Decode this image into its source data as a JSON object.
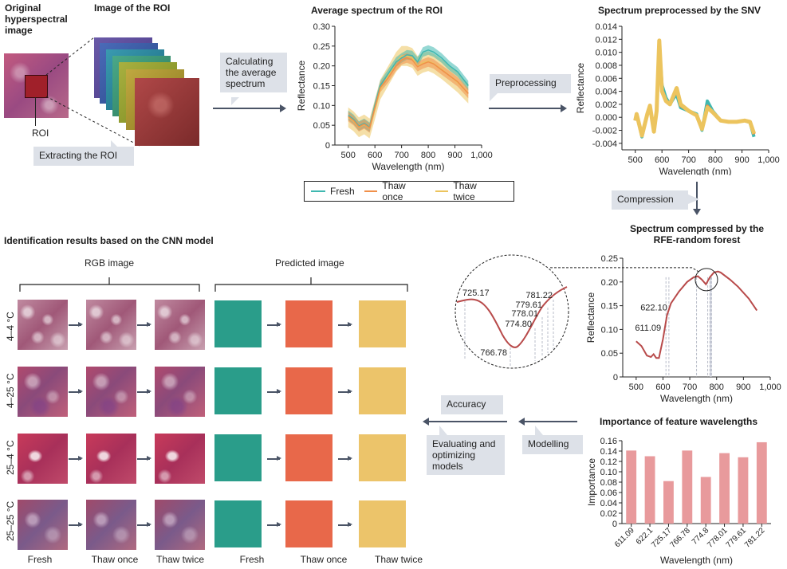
{
  "colors": {
    "fresh": "#3fb8b0",
    "thaw_once": "#f0904a",
    "thaw_twice": "#ecc45e",
    "compressed_line": "#b84a4a",
    "bar": "#e89a9c",
    "pred_fresh": "#2a9d8a",
    "pred_once": "#e8684a",
    "pred_twice": "#ecc46a",
    "callout_bg": "#dde1e8",
    "arrow": "#4a5466"
  },
  "top": {
    "original_title": "Original hyperspectral image",
    "roi_image_title": "Image of the ROI",
    "roi_label": "ROI",
    "extract_callout": "Extracting the ROI",
    "avg_callout": "Calculating the average spectrum",
    "preprocess_callout": "Preprocessing",
    "compression_callout": "Compression"
  },
  "legend": {
    "items": [
      "Fresh",
      "Thaw once",
      "Thaw twice"
    ]
  },
  "cnn": {
    "title": "Identification results based on the CNN model",
    "rgb_header": "RGB image",
    "pred_header": "Predicted image",
    "rows": [
      "4–4 °C",
      "4–25 °C",
      "25–4 °C",
      "25–25 °C"
    ],
    "columns": [
      "Fresh",
      "Thaw once",
      "Thaw twice",
      "Fresh",
      "Thaw once",
      "Thaw twice"
    ]
  },
  "flow": {
    "accuracy_callout": "Accuracy",
    "evaluating_callout": "Evaluating and optimizing models",
    "modelling_callout": "Modelling"
  },
  "zoom_labels": [
    "725.17",
    "766.78",
    "774.80",
    "778.01",
    "779.61",
    "781.22"
  ],
  "chart_data": [
    {
      "type": "area",
      "title": "Average spectrum of the ROI",
      "xlabel": "Wavelength (nm)",
      "ylabel": "Reflectance",
      "xlim": [
        450,
        1000
      ],
      "ylim": [
        0,
        0.3
      ],
      "xticks": [
        "500",
        "600",
        "700",
        "800",
        "900",
        "1,000"
      ],
      "yticks": [
        "0",
        "0.05",
        "0.10",
        "0.15",
        "0.20",
        "0.25",
        "0.30"
      ],
      "x": [
        500,
        520,
        540,
        560,
        580,
        600,
        620,
        650,
        680,
        700,
        720,
        740,
        760,
        780,
        800,
        820,
        850,
        880,
        910,
        950
      ],
      "series": [
        {
          "name": "Fresh",
          "mean": [
            0.075,
            0.065,
            0.048,
            0.055,
            0.045,
            0.1,
            0.15,
            0.18,
            0.21,
            0.22,
            0.228,
            0.226,
            0.21,
            0.235,
            0.24,
            0.235,
            0.22,
            0.2,
            0.185,
            0.15
          ],
          "band": 0.012
        },
        {
          "name": "Thaw once",
          "mean": [
            0.072,
            0.062,
            0.046,
            0.053,
            0.043,
            0.095,
            0.145,
            0.17,
            0.2,
            0.215,
            0.22,
            0.215,
            0.198,
            0.205,
            0.21,
            0.205,
            0.19,
            0.175,
            0.16,
            0.13
          ],
          "band": 0.012
        },
        {
          "name": "Thaw twice",
          "mean": [
            0.07,
            0.06,
            0.045,
            0.052,
            0.042,
            0.09,
            0.14,
            0.175,
            0.21,
            0.225,
            0.225,
            0.22,
            0.2,
            0.208,
            0.212,
            0.206,
            0.192,
            0.175,
            0.158,
            0.13
          ],
          "band": 0.025
        }
      ],
      "legend": "bottom"
    },
    {
      "type": "line",
      "title": "Spectrum preprocessed by the SNV",
      "xlabel": "Wavelength (nm)",
      "ylabel": "Reflectance",
      "xlim": [
        450,
        1000
      ],
      "ylim": [
        -0.005,
        0.014
      ],
      "xticks": [
        "500",
        "600",
        "700",
        "800",
        "900",
        "1,000"
      ],
      "yticks": [
        "-0.004",
        "-0.002",
        "0.000",
        "0.002",
        "0.004",
        "0.006",
        "0.008",
        "0.010",
        "0.012",
        "0.014"
      ],
      "x": [
        500,
        505,
        525,
        545,
        555,
        570,
        580,
        590,
        600,
        615,
        630,
        645,
        655,
        670,
        700,
        730,
        750,
        770,
        790,
        820,
        850,
        880,
        910,
        930,
        945
      ],
      "series": [
        {
          "name": "Fresh",
          "values": [
            -0.0005,
            0.0005,
            -0.003,
            0.0005,
            0.0015,
            -0.002,
            0.001,
            0.0115,
            0.005,
            0.003,
            0.002,
            0.003,
            0.0035,
            0.0015,
            0.001,
            0.0005,
            -0.002,
            0.0025,
            0.001,
            -0.0005,
            -0.0007,
            -0.0007,
            -0.0005,
            -0.0008,
            -0.003
          ]
        },
        {
          "name": "Thaw once",
          "values": [
            -0.0005,
            0.0005,
            -0.0028,
            0.0005,
            0.0018,
            -0.0022,
            0.001,
            0.0118,
            0.004,
            0.0025,
            0.002,
            0.0035,
            0.0045,
            0.002,
            0.001,
            0.0003,
            -0.0018,
            0.0015,
            0.0008,
            -0.0005,
            -0.0007,
            -0.0007,
            -0.0005,
            -0.0007,
            -0.0025
          ]
        },
        {
          "name": "Thaw twice",
          "values": [
            -0.0005,
            0.0005,
            -0.0028,
            0.0005,
            0.0017,
            -0.0021,
            0.001,
            0.0116,
            0.0042,
            0.0026,
            0.002,
            0.0033,
            0.0042,
            0.0018,
            0.001,
            0.0003,
            -0.0018,
            0.0017,
            0.0008,
            -0.0005,
            -0.0007,
            -0.0007,
            -0.0005,
            -0.0007,
            -0.0026
          ]
        }
      ]
    },
    {
      "type": "line",
      "title": "Spectrum compressed by the RFE-random forest",
      "xlabel": "Wavelength (nm)",
      "ylabel": "Reflectance",
      "xlim": [
        450,
        1000
      ],
      "ylim": [
        0,
        0.25
      ],
      "xticks": [
        "500",
        "600",
        "700",
        "800",
        "900",
        "1,000"
      ],
      "yticks": [
        "0",
        "0.05",
        "0.10",
        "0.15",
        "0.20",
        "0.25"
      ],
      "x": [
        500,
        520,
        540,
        555,
        565,
        575,
        585,
        600,
        615,
        630,
        660,
        690,
        715,
        730,
        745,
        760,
        775,
        790,
        805,
        815,
        850,
        880,
        920,
        950
      ],
      "values": [
        0.075,
        0.065,
        0.045,
        0.042,
        0.048,
        0.04,
        0.04,
        0.08,
        0.13,
        0.155,
        0.18,
        0.2,
        0.21,
        0.212,
        0.205,
        0.195,
        0.21,
        0.22,
        0.222,
        0.22,
        0.205,
        0.19,
        0.165,
        0.14
      ],
      "feature_wavelengths": [
        611.09,
        622.1,
        725.17,
        766.78,
        774.8,
        778.01,
        779.61,
        781.22
      ],
      "annotations": [
        "611.09",
        "622.10"
      ]
    },
    {
      "type": "bar",
      "title": "Importance of feature wavelengths",
      "xlabel": "Wavelength (nm)",
      "ylabel": "Importance",
      "categories": [
        "611.09",
        "622.1",
        "725.17",
        "766.78",
        "774.8",
        "778.01",
        "779.61",
        "781.22"
      ],
      "values": [
        0.141,
        0.13,
        0.082,
        0.141,
        0.09,
        0.136,
        0.128,
        0.157
      ],
      "ylim": [
        0,
        0.16
      ],
      "yticks": [
        "0",
        "0.02",
        "0.04",
        "0.06",
        "0.08",
        "0.10",
        "0.12",
        "0.14",
        "0.16"
      ]
    }
  ]
}
